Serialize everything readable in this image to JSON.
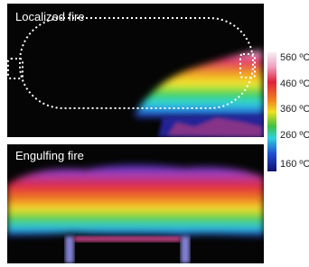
{
  "panels": [
    {
      "title": "Localized fire"
    },
    {
      "title": "Engulfing fire"
    }
  ],
  "colorbar": {
    "labels": [
      "560 ºC",
      "460 ºC",
      "360 ºC",
      "260 ºC",
      "160 ºC"
    ]
  }
}
